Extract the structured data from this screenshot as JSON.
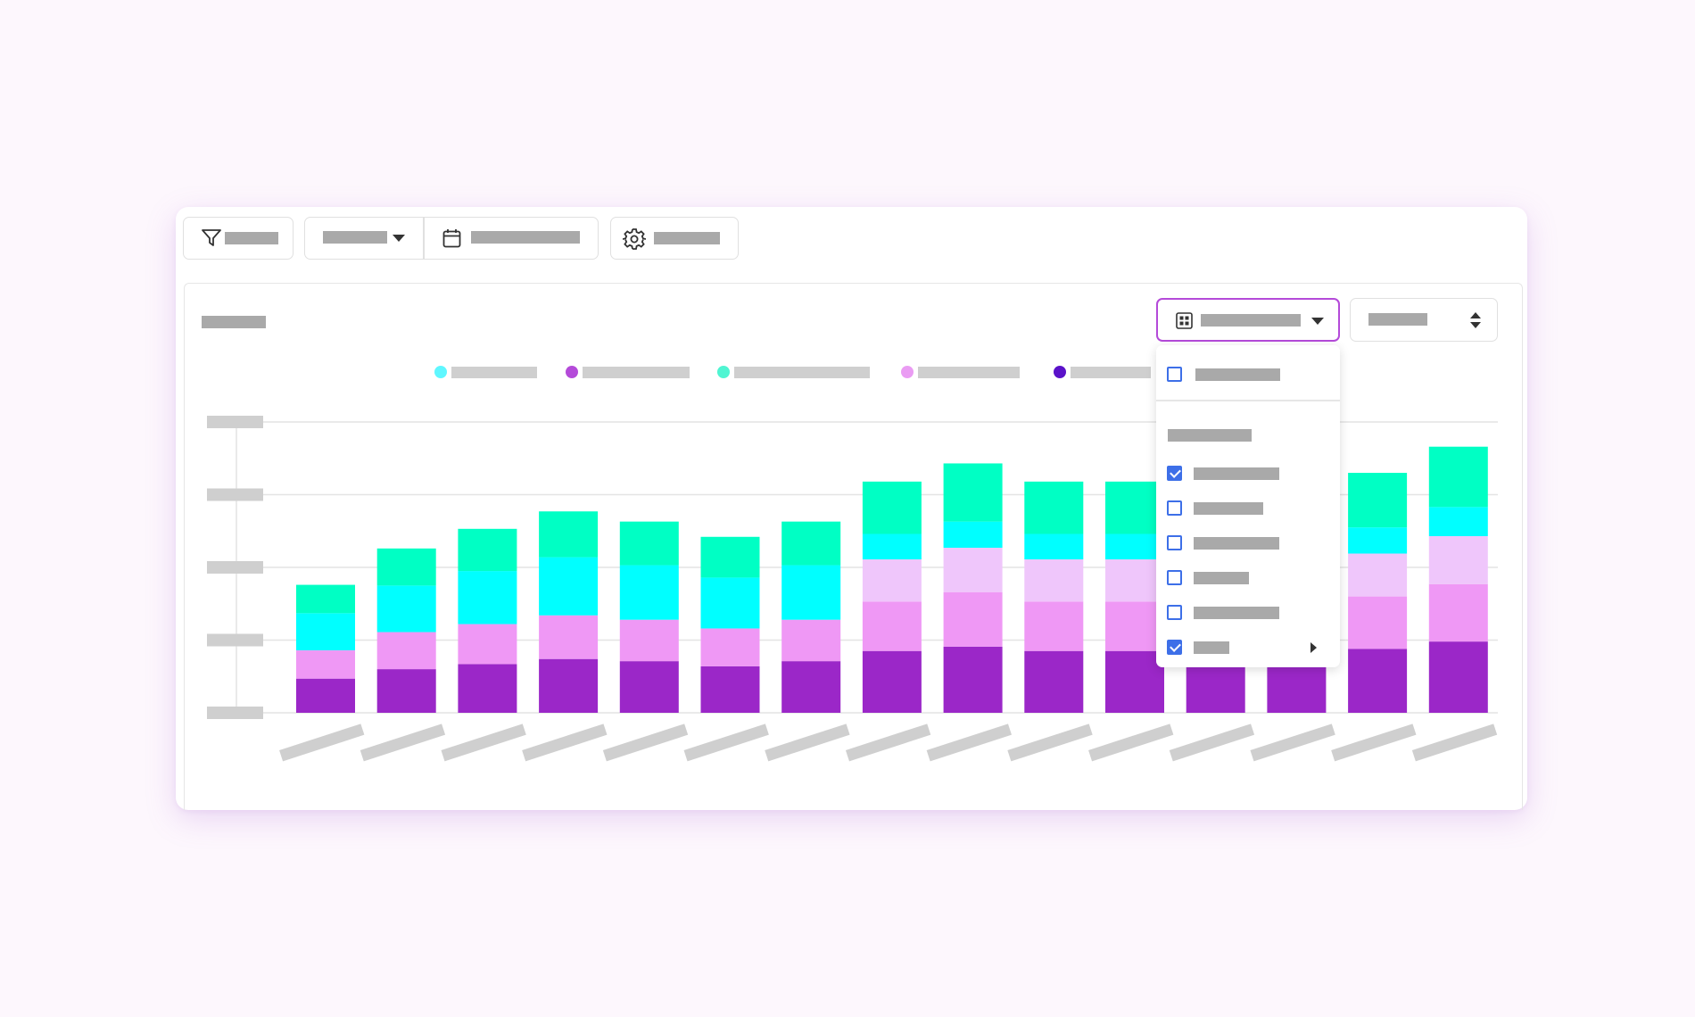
{
  "colors": {
    "page_background": "#fdf7fd",
    "accent": "#b44ad9",
    "checkbox": "#3d6fe8",
    "placeholder_text": "#a9a9a9",
    "placeholder_light": "#cfcfcf"
  },
  "toolbar": {
    "filter": {
      "icon": "filter-icon",
      "label": ""
    },
    "group_select": {
      "label": "",
      "icon": "caret-down-icon"
    },
    "date_range": {
      "icon": "calendar-icon",
      "label": ""
    },
    "settings": {
      "icon": "gear-icon",
      "label": ""
    }
  },
  "panel": {
    "title": "",
    "view_select": {
      "icon": "grid-icon",
      "label": "",
      "caret": "caret-down-icon"
    },
    "sort_select": {
      "label": "",
      "icon": "sort-arrows-icon"
    }
  },
  "dropdown": {
    "top_option": {
      "label": "",
      "checked": false
    },
    "section_heading": "",
    "options": [
      {
        "label": "",
        "checked": true
      },
      {
        "label": "",
        "checked": false
      },
      {
        "label": "",
        "checked": false
      },
      {
        "label": "",
        "checked": false
      },
      {
        "label": "",
        "checked": false
      },
      {
        "label": "",
        "checked": true,
        "submenu": true
      }
    ]
  },
  "chart_data": {
    "type": "bar",
    "stacked": true,
    "title": "",
    "xlabel": "",
    "ylabel": "",
    "ylim": [
      0,
      4
    ],
    "y_ticks": [
      "",
      "",
      "",
      "",
      ""
    ],
    "categories": [
      "",
      "",
      "",
      "",
      "",
      "",
      "",
      "",
      "",
      "",
      "",
      "",
      "",
      "",
      ""
    ],
    "grid": true,
    "legend_position": "top",
    "series": [
      {
        "name": "",
        "color": "#9b27c8",
        "values": [
          0.47,
          0.6,
          0.67,
          0.74,
          0.71,
          0.64,
          0.71,
          0.85,
          0.91,
          0.85,
          0.85,
          0.85,
          0.85,
          0.88,
          0.98
        ]
      },
      {
        "name": "",
        "color": "#ef98f5",
        "values": [
          0.39,
          0.51,
          0.55,
          0.6,
          0.57,
          0.52,
          0.57,
          0.68,
          0.75,
          0.68,
          0.68,
          0.68,
          0.68,
          0.72,
          0.79
        ]
      },
      {
        "name": "",
        "color": "#efc6fb",
        "values": [
          0,
          0,
          0,
          0,
          0,
          0,
          0,
          0.58,
          0.61,
          0.58,
          0.58,
          0.58,
          0.58,
          0.59,
          0.66
        ]
      },
      {
        "name": "",
        "color": "#00ffff",
        "values": [
          0.51,
          0.64,
          0.73,
          0.8,
          0.75,
          0.7,
          0.75,
          0.35,
          0.36,
          0.35,
          0.35,
          0.35,
          0.35,
          0.36,
          0.4
        ]
      },
      {
        "name": "",
        "color": "#00ffc4",
        "values": [
          0.39,
          0.51,
          0.58,
          0.63,
          0.6,
          0.56,
          0.6,
          0.72,
          0.8,
          0.72,
          0.72,
          0.72,
          0.72,
          0.75,
          0.83
        ]
      }
    ],
    "legend_dots": [
      "#5ff7ff",
      "#b44ad9",
      "#4ff5d2",
      "#ea9cf3",
      "#5a12c9"
    ]
  }
}
